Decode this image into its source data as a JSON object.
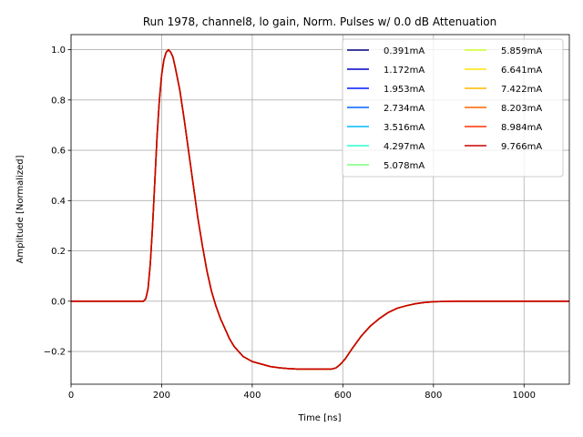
{
  "chart_data": {
    "type": "line",
    "title": "Run 1978, channel8, lo gain, Norm. Pulses w/ 0.0 dB Attenuation",
    "xlabel": "Time [ns]",
    "ylabel": "Amplitude [Normalized]",
    "xlim": [
      0,
      1100
    ],
    "ylim": [
      -0.33,
      1.06
    ],
    "xticks": [
      0,
      200,
      400,
      600,
      800,
      1000
    ],
    "yticks": [
      -0.2,
      0.0,
      0.2,
      0.4,
      0.6,
      0.8,
      1.0
    ],
    "xtick_labels": [
      "0",
      "200",
      "400",
      "600",
      "800",
      "1000"
    ],
    "ytick_labels": [
      "−0.2",
      "0.0",
      "0.2",
      "0.4",
      "0.6",
      "0.8",
      "1.0"
    ],
    "grid": true,
    "legend_position": "top-right",
    "legend_columns": 2,
    "pulse_shape": {
      "x": [
        0,
        160,
        165,
        170,
        175,
        180,
        185,
        190,
        195,
        200,
        205,
        210,
        215,
        220,
        225,
        230,
        240,
        250,
        260,
        270,
        280,
        290,
        300,
        310,
        320,
        330,
        340,
        350,
        360,
        370,
        380,
        390,
        400,
        420,
        440,
        460,
        480,
        500,
        520,
        540,
        560,
        575,
        585,
        595,
        605,
        620,
        640,
        660,
        680,
        700,
        720,
        740,
        760,
        780,
        800,
        850,
        900,
        1000,
        1100
      ],
      "y": [
        0.0,
        0.0,
        0.01,
        0.05,
        0.15,
        0.3,
        0.48,
        0.66,
        0.8,
        0.9,
        0.96,
        0.99,
        1.0,
        0.99,
        0.97,
        0.93,
        0.84,
        0.72,
        0.59,
        0.46,
        0.33,
        0.22,
        0.12,
        0.04,
        -0.02,
        -0.07,
        -0.11,
        -0.15,
        -0.18,
        -0.2,
        -0.22,
        -0.23,
        -0.24,
        -0.25,
        -0.26,
        -0.265,
        -0.268,
        -0.27,
        -0.27,
        -0.27,
        -0.27,
        -0.27,
        -0.265,
        -0.25,
        -0.23,
        -0.19,
        -0.14,
        -0.1,
        -0.07,
        -0.045,
        -0.028,
        -0.018,
        -0.01,
        -0.005,
        -0.002,
        0.0,
        0.0,
        0.0,
        0.0
      ]
    },
    "series": [
      {
        "name": "0.391mA",
        "color": "#00007f"
      },
      {
        "name": "1.172mA",
        "color": "#0000c8"
      },
      {
        "name": "1.953mA",
        "color": "#0018ff"
      },
      {
        "name": "2.734mA",
        "color": "#0064ff"
      },
      {
        "name": "3.516mA",
        "color": "#00bcff"
      },
      {
        "name": "4.297mA",
        "color": "#29ffce"
      },
      {
        "name": "5.078mA",
        "color": "#7dff7a"
      },
      {
        "name": "5.859mA",
        "color": "#ceff29"
      },
      {
        "name": "6.641mA",
        "color": "#ffe500"
      },
      {
        "name": "7.422mA",
        "color": "#ffb800"
      },
      {
        "name": "8.203mA",
        "color": "#ff6300"
      },
      {
        "name": "8.984mA",
        "color": "#ff3000"
      },
      {
        "name": "9.766mA",
        "color": "#c80000"
      }
    ]
  }
}
